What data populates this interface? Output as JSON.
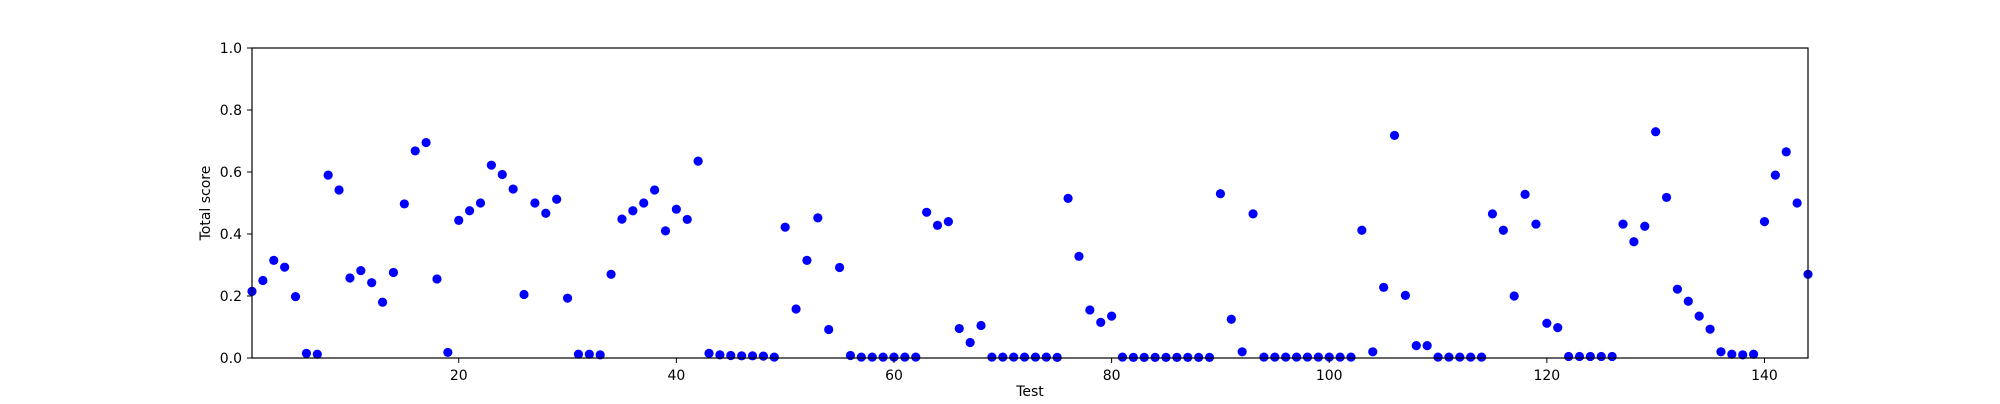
{
  "chart_data": {
    "type": "scatter",
    "title": "",
    "xlabel": "Test",
    "ylabel": "Total score",
    "xlim": [
      1,
      144
    ],
    "ylim": [
      0.0,
      1.0
    ],
    "xticks": [
      20,
      40,
      60,
      80,
      100,
      120,
      140
    ],
    "yticks": [
      "0.0",
      "0.2",
      "0.4",
      "0.6",
      "0.8",
      "1.0"
    ],
    "grid": false,
    "legend": "none",
    "marker_color": "#0000ff",
    "series": [
      {
        "points": [
          [
            1,
            0.215
          ],
          [
            2,
            0.25
          ],
          [
            3,
            0.315
          ],
          [
            4,
            0.293
          ],
          [
            5,
            0.198
          ],
          [
            6,
            0.015
          ],
          [
            7,
            0.012
          ],
          [
            8,
            0.59
          ],
          [
            9,
            0.542
          ],
          [
            10,
            0.258
          ],
          [
            11,
            0.282
          ],
          [
            12,
            0.243
          ],
          [
            13,
            0.18
          ],
          [
            14,
            0.276
          ],
          [
            15,
            0.497
          ],
          [
            16,
            0.668
          ],
          [
            17,
            0.695
          ],
          [
            18,
            0.255
          ],
          [
            19,
            0.018
          ],
          [
            20,
            0.444
          ],
          [
            21,
            0.475
          ],
          [
            22,
            0.5
          ],
          [
            23,
            0.622
          ],
          [
            24,
            0.592
          ],
          [
            25,
            0.545
          ],
          [
            26,
            0.205
          ],
          [
            27,
            0.5
          ],
          [
            28,
            0.467
          ],
          [
            29,
            0.512
          ],
          [
            30,
            0.193
          ],
          [
            31,
            0.012
          ],
          [
            32,
            0.012
          ],
          [
            33,
            0.01
          ],
          [
            34,
            0.27
          ],
          [
            35,
            0.448
          ],
          [
            36,
            0.475
          ],
          [
            37,
            0.5
          ],
          [
            38,
            0.542
          ],
          [
            39,
            0.41
          ],
          [
            40,
            0.48
          ],
          [
            41,
            0.447
          ],
          [
            42,
            0.635
          ],
          [
            43,
            0.015
          ],
          [
            44,
            0.01
          ],
          [
            45,
            0.008
          ],
          [
            46,
            0.007
          ],
          [
            47,
            0.007
          ],
          [
            48,
            0.006
          ],
          [
            49,
            0.003
          ],
          [
            50,
            0.422
          ],
          [
            51,
            0.158
          ],
          [
            52,
            0.315
          ],
          [
            53,
            0.452
          ],
          [
            54,
            0.092
          ],
          [
            55,
            0.292
          ],
          [
            56,
            0.008
          ],
          [
            57,
            0.003
          ],
          [
            58,
            0.003
          ],
          [
            59,
            0.003
          ],
          [
            60,
            0.003
          ],
          [
            61,
            0.003
          ],
          [
            62,
            0.003
          ],
          [
            63,
            0.47
          ],
          [
            64,
            0.428
          ],
          [
            65,
            0.44
          ],
          [
            66,
            0.095
          ],
          [
            67,
            0.05
          ],
          [
            68,
            0.105
          ],
          [
            69,
            0.003
          ],
          [
            70,
            0.003
          ],
          [
            71,
            0.003
          ],
          [
            72,
            0.003
          ],
          [
            73,
            0.003
          ],
          [
            74,
            0.003
          ],
          [
            75,
            0.002
          ],
          [
            76,
            0.515
          ],
          [
            77,
            0.328
          ],
          [
            78,
            0.155
          ],
          [
            79,
            0.115
          ],
          [
            80,
            0.135
          ],
          [
            81,
            0.003
          ],
          [
            82,
            0.002
          ],
          [
            83,
            0.002
          ],
          [
            84,
            0.002
          ],
          [
            85,
            0.002
          ],
          [
            86,
            0.002
          ],
          [
            87,
            0.002
          ],
          [
            88,
            0.002
          ],
          [
            89,
            0.002
          ],
          [
            90,
            0.53
          ],
          [
            91,
            0.125
          ],
          [
            92,
            0.02
          ],
          [
            93,
            0.465
          ],
          [
            94,
            0.003
          ],
          [
            95,
            0.003
          ],
          [
            96,
            0.003
          ],
          [
            97,
            0.003
          ],
          [
            98,
            0.003
          ],
          [
            99,
            0.003
          ],
          [
            100,
            0.003
          ],
          [
            101,
            0.003
          ],
          [
            102,
            0.003
          ],
          [
            103,
            0.412
          ],
          [
            104,
            0.02
          ],
          [
            105,
            0.228
          ],
          [
            106,
            0.718
          ],
          [
            107,
            0.202
          ],
          [
            108,
            0.04
          ],
          [
            109,
            0.04
          ],
          [
            110,
            0.003
          ],
          [
            111,
            0.003
          ],
          [
            112,
            0.003
          ],
          [
            113,
            0.003
          ],
          [
            114,
            0.003
          ],
          [
            115,
            0.465
          ],
          [
            116,
            0.412
          ],
          [
            117,
            0.2
          ],
          [
            118,
            0.528
          ],
          [
            119,
            0.432
          ],
          [
            120,
            0.112
          ],
          [
            121,
            0.098
          ],
          [
            122,
            0.005
          ],
          [
            123,
            0.005
          ],
          [
            124,
            0.005
          ],
          [
            125,
            0.005
          ],
          [
            126,
            0.005
          ],
          [
            127,
            0.432
          ],
          [
            128,
            0.375
          ],
          [
            129,
            0.425
          ],
          [
            130,
            0.73
          ],
          [
            131,
            0.518
          ],
          [
            132,
            0.222
          ],
          [
            133,
            0.183
          ],
          [
            134,
            0.135
          ],
          [
            135,
            0.093
          ],
          [
            136,
            0.02
          ],
          [
            137,
            0.012
          ],
          [
            138,
            0.01
          ],
          [
            139,
            0.012
          ],
          [
            140,
            0.44
          ],
          [
            141,
            0.59
          ],
          [
            142,
            0.665
          ],
          [
            143,
            0.5
          ],
          [
            144,
            0.27
          ]
        ]
      }
    ]
  }
}
